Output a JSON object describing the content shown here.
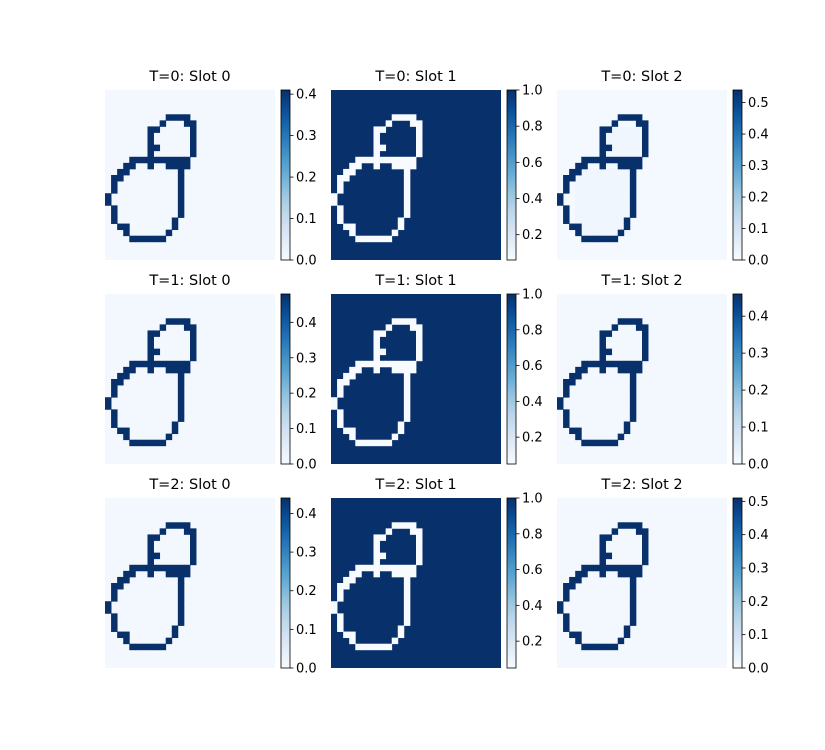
{
  "chart_data": [
    {
      "type": "heatmap",
      "title": "T=0: Slot 0",
      "colormap": "Blues",
      "colorbar_range": [
        0.0,
        0.41
      ],
      "colorbar_ticks": [
        "0.0",
        "0.1",
        "0.2",
        "0.3",
        "0.4"
      ],
      "colorbar_tick_values": [
        0.0,
        0.1,
        0.2,
        0.3,
        0.4
      ],
      "background_value": 0.01,
      "outline_value": 0.41,
      "region_value": null
    },
    {
      "type": "heatmap",
      "title": "T=0: Slot 1",
      "colormap": "Blues",
      "colorbar_range": [
        0.06,
        1.0
      ],
      "colorbar_ticks": [
        "0.2",
        "0.4",
        "0.6",
        "0.8",
        "1.0"
      ],
      "colorbar_tick_values": [
        0.2,
        0.4,
        0.6,
        0.8,
        1.0
      ],
      "background_value": 1.0,
      "outline_value": 0.06,
      "region_value": null
    },
    {
      "type": "heatmap",
      "title": "T=0: Slot 2",
      "colormap": "Blues",
      "colorbar_range": [
        0.0,
        0.54
      ],
      "colorbar_ticks": [
        "0.0",
        "0.1",
        "0.2",
        "0.3",
        "0.4",
        "0.5"
      ],
      "colorbar_tick_values": [
        0.0,
        0.1,
        0.2,
        0.3,
        0.4,
        0.5
      ],
      "background_value": 0.01,
      "outline_value": 0.54,
      "region_value": 0.02
    },
    {
      "type": "heatmap",
      "title": "T=1: Slot 0",
      "colormap": "Blues",
      "colorbar_range": [
        0.0,
        0.48
      ],
      "colorbar_ticks": [
        "0.0",
        "0.1",
        "0.2",
        "0.3",
        "0.4"
      ],
      "colorbar_tick_values": [
        0.0,
        0.1,
        0.2,
        0.3,
        0.4
      ],
      "background_value": 0.01,
      "outline_value": 0.48,
      "region_value": null
    },
    {
      "type": "heatmap",
      "title": "T=1: Slot 1",
      "colormap": "Blues",
      "colorbar_range": [
        0.05,
        1.0
      ],
      "colorbar_ticks": [
        "0.2",
        "0.4",
        "0.6",
        "0.8",
        "1.0"
      ],
      "colorbar_tick_values": [
        0.2,
        0.4,
        0.6,
        0.8,
        1.0
      ],
      "background_value": 1.0,
      "outline_value": 0.05,
      "region_value": null
    },
    {
      "type": "heatmap",
      "title": "T=1: Slot 2",
      "colormap": "Blues",
      "colorbar_range": [
        0.0,
        0.46
      ],
      "colorbar_ticks": [
        "0.0",
        "0.1",
        "0.2",
        "0.3",
        "0.4"
      ],
      "colorbar_tick_values": [
        0.0,
        0.1,
        0.2,
        0.3,
        0.4
      ],
      "background_value": 0.01,
      "outline_value": 0.46,
      "region_value": null
    },
    {
      "type": "heatmap",
      "title": "T=2: Slot 0",
      "colormap": "Blues",
      "colorbar_range": [
        0.0,
        0.44
      ],
      "colorbar_ticks": [
        "0.0",
        "0.1",
        "0.2",
        "0.3",
        "0.4"
      ],
      "colorbar_tick_values": [
        0.0,
        0.1,
        0.2,
        0.3,
        0.4
      ],
      "background_value": 0.01,
      "outline_value": 0.44,
      "region_value": null
    },
    {
      "type": "heatmap",
      "title": "T=2: Slot 1",
      "colormap": "Blues",
      "colorbar_range": [
        0.05,
        1.0
      ],
      "colorbar_ticks": [
        "0.2",
        "0.4",
        "0.6",
        "0.8",
        "1.0"
      ],
      "colorbar_tick_values": [
        0.2,
        0.4,
        0.6,
        0.8,
        1.0
      ],
      "background_value": 1.0,
      "outline_value": 0.05,
      "region_value": null
    },
    {
      "type": "heatmap",
      "title": "T=2: Slot 2",
      "colormap": "Blues",
      "colorbar_range": [
        0.0,
        0.51
      ],
      "colorbar_ticks": [
        "0.0",
        "0.1",
        "0.2",
        "0.3",
        "0.4",
        "0.5"
      ],
      "colorbar_tick_values": [
        0.0,
        0.1,
        0.2,
        0.3,
        0.4,
        0.5
      ],
      "background_value": 0.01,
      "outline_value": 0.51,
      "region_value": null
    }
  ],
  "colors": {
    "blues_colormap": [
      "#f7fbff",
      "#deebf7",
      "#c6dbef",
      "#9ecae1",
      "#6baed6",
      "#4292c6",
      "#2171b5",
      "#08519c",
      "#08306b"
    ],
    "text": "#000000",
    "axis_line": "#000000"
  }
}
